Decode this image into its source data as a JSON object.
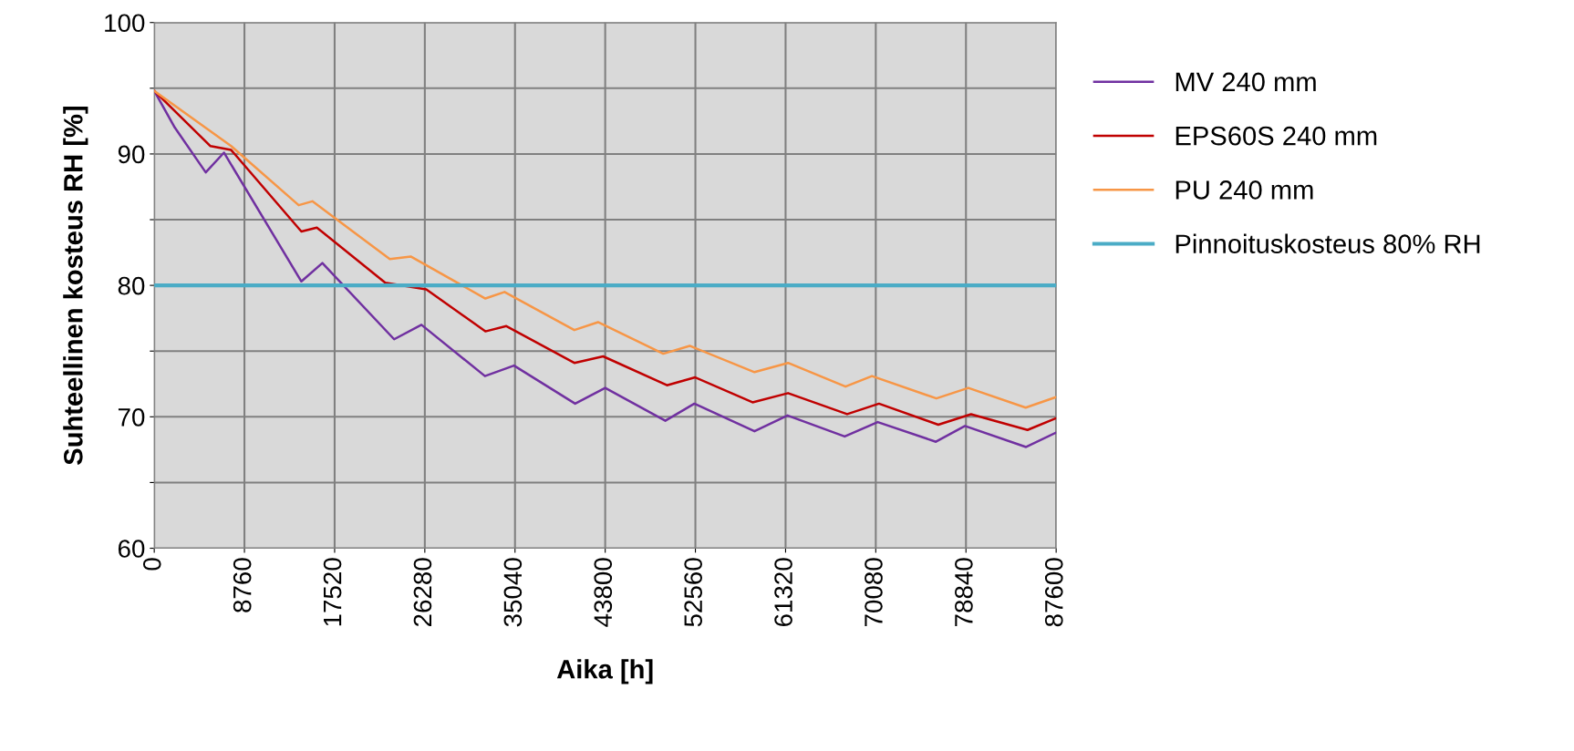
{
  "chart_data": {
    "type": "line",
    "xlabel": "Aika [h]",
    "ylabel": "Suhteellinen kosteus RH [%]",
    "xlim": [
      0,
      87600
    ],
    "xticks": [
      0,
      8760,
      17520,
      26280,
      35040,
      43800,
      52560,
      61320,
      70080,
      78840,
      87600
    ],
    "ylim": [
      60,
      100
    ],
    "yticks": [
      60,
      {
        "value": 65,
        "label": null
      },
      70,
      {
        "value": 75,
        "label": null
      },
      80,
      {
        "value": 85,
        "label": null
      },
      90,
      {
        "value": 95,
        "label": null
      },
      100
    ],
    "grid": true,
    "legend": "right",
    "marker": "none",
    "line_style": "solid",
    "series": [
      {
        "name": "MV 240 mm",
        "color": "#7030a0",
        "x": [
          0,
          2000,
          5000,
          6770,
          14290,
          16330,
          23300,
          25950,
          32120,
          34940,
          40880,
          43800,
          49640,
          52460,
          58300,
          61510,
          67060,
          70270,
          75920,
          78740,
          84680,
          87600
        ],
        "values": [
          94.8,
          92.0,
          88.6,
          90.1,
          80.3,
          81.7,
          75.9,
          77.0,
          73.1,
          73.9,
          71.0,
          72.2,
          69.7,
          71.0,
          68.9,
          70.1,
          68.5,
          69.6,
          68.1,
          69.3,
          67.7,
          68.8
        ]
      },
      {
        "name": "EPS60S 240 mm",
        "color": "#c00000",
        "x": [
          0,
          5460,
          7470,
          14290,
          15790,
          22440,
          26420,
          32160,
          34200,
          40800,
          43600,
          49800,
          52540,
          58110,
          61560,
          67300,
          70390,
          76150,
          79330,
          84820,
          87600
        ],
        "values": [
          94.8,
          90.6,
          90.3,
          84.1,
          84.4,
          80.2,
          79.7,
          76.5,
          76.9,
          74.1,
          74.6,
          72.4,
          73.0,
          71.1,
          71.8,
          70.2,
          71.0,
          69.4,
          70.2,
          69.0,
          69.9
        ]
      },
      {
        "name": "PU 240 mm",
        "color": "#f79646",
        "x": [
          0,
          7470,
          14030,
          15360,
          22880,
          24910,
          32160,
          34020,
          40800,
          43100,
          49440,
          52010,
          58300,
          61560,
          67140,
          69710,
          75970,
          79070,
          84640,
          87600
        ],
        "values": [
          94.8,
          90.6,
          86.1,
          86.4,
          82.0,
          82.2,
          79.0,
          79.5,
          76.6,
          77.2,
          74.8,
          75.4,
          73.4,
          74.1,
          72.3,
          73.1,
          71.4,
          72.2,
          70.7,
          71.5
        ]
      }
    ],
    "ref_lines": [
      {
        "axis": "y",
        "value": 80,
        "label": "Pinnoituskosteus 80% RH",
        "color": "#4bacc6",
        "line_style": "solid"
      }
    ]
  }
}
